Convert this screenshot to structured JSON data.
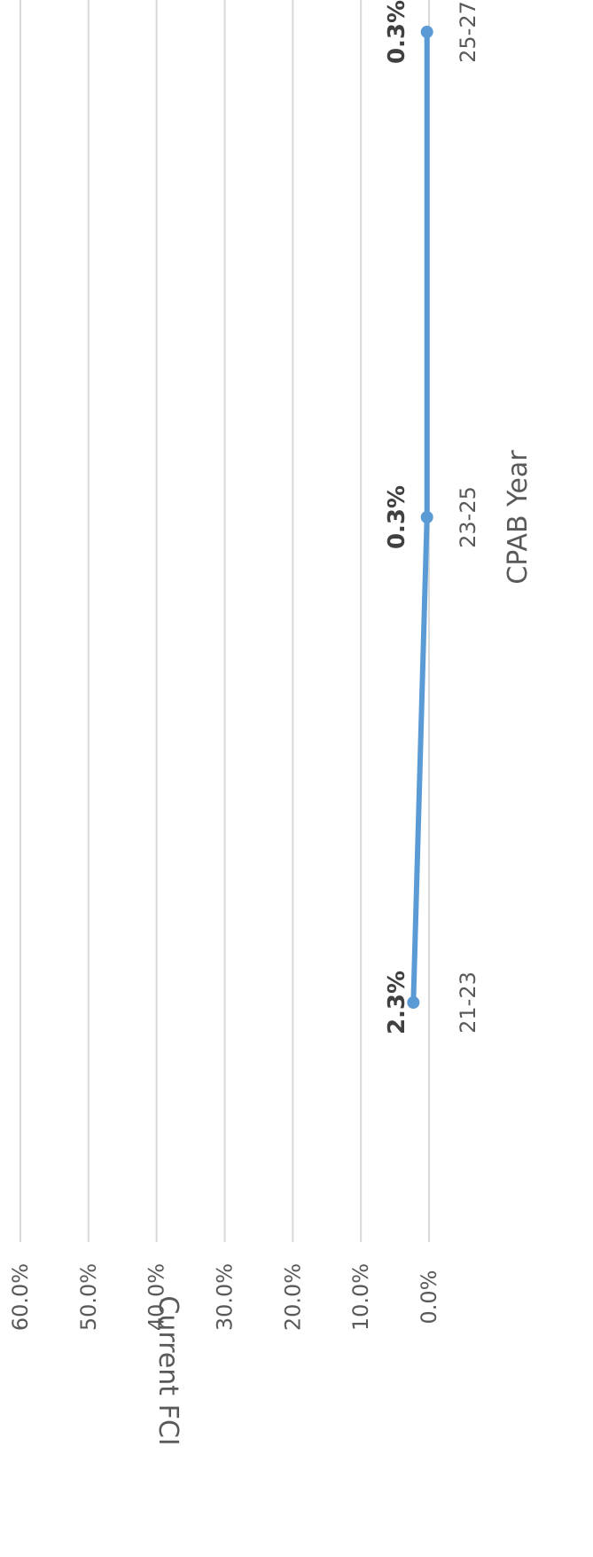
{
  "chart_data": {
    "type": "line",
    "xlabel": "CPAB Year",
    "ylabel": "Current FCI",
    "categories": [
      "21-23",
      "23-25",
      "25-27"
    ],
    "series": [
      {
        "values": [
          2.3,
          0.3,
          0.3
        ],
        "labels": [
          "2.3%",
          "0.3%",
          "0.3%"
        ],
        "color": "#5b9bd5"
      }
    ],
    "ylim": [
      0,
      60
    ],
    "yticks": [
      0,
      10,
      20,
      30,
      40,
      50,
      60
    ],
    "ytick_labels": [
      "0.0%",
      "10.0%",
      "20.0%",
      "30.0%",
      "40.0%",
      "50.0%",
      "60.0%"
    ],
    "grid": true,
    "legend": false,
    "orientation": "rotated-90-clockwise"
  }
}
